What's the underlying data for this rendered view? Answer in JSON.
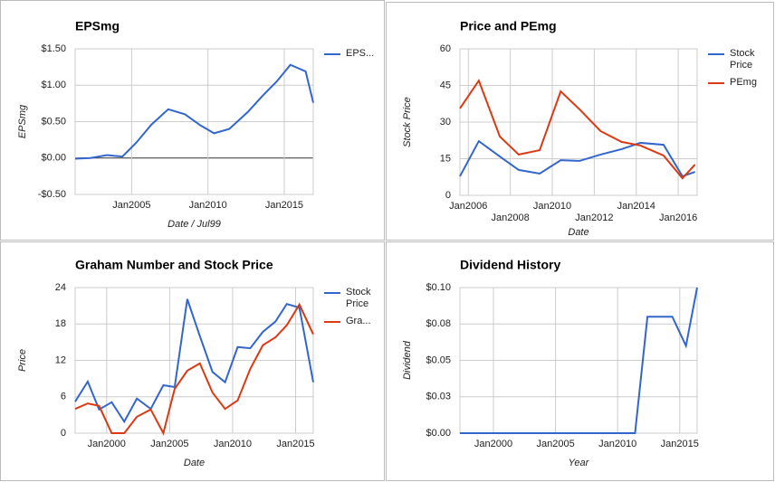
{
  "chart_data": [
    {
      "type": "line",
      "title": "EPSmg",
      "x_label": "Date / Jul99",
      "y_label": "EPSmg",
      "x": [
        2001.3,
        2002.3,
        2003.4,
        2004.4,
        2005.3,
        2006.3,
        2007.4,
        2008.5,
        2009.5,
        2010.4,
        2011.4,
        2012.6,
        2013.6,
        2014.5,
        2015.4,
        2016.4,
        2016.9
      ],
      "series": [
        {
          "name": "EPS...",
          "color": "#3366cc",
          "values": [
            -0.01,
            0,
            0.04,
            0.02,
            0.21,
            0.46,
            0.67,
            0.6,
            0.45,
            0.34,
            0.4,
            0.63,
            0.86,
            1.05,
            1.28,
            1.19,
            0.76
          ]
        }
      ],
      "xlim": [
        2001.3,
        2016.9
      ],
      "xticks": [
        {
          "value": 2005,
          "label": "Jan2005"
        },
        {
          "value": 2010,
          "label": "Jan2010"
        },
        {
          "value": 2015,
          "label": "Jan2015"
        }
      ],
      "ylim": [
        -0.5,
        1.5
      ],
      "yticks": [
        {
          "value": -0.5,
          "label": "-$0.50"
        },
        {
          "value": 0,
          "label": "$0.00"
        },
        {
          "value": 0.5,
          "label": "$0.50"
        },
        {
          "value": 1,
          "label": "$1.00"
        },
        {
          "value": 1.5,
          "label": "$1.50"
        }
      ],
      "grid": true,
      "legend": "right"
    },
    {
      "type": "line",
      "title": "Price and PEmg",
      "x_label": "Date",
      "y_label": "Stock Price",
      "x": [
        2005.6,
        2006.5,
        2007.5,
        2008.4,
        2009.4,
        2010.4,
        2011.3,
        2012.3,
        2013.3,
        2014.2,
        2015.3,
        2016.2,
        2016.8
      ],
      "series": [
        {
          "name": "Stock Price",
          "color": "#3366cc",
          "values": [
            7.8,
            22.2,
            15.9,
            10.4,
            8.9,
            14.4,
            14.1,
            16.7,
            18.9,
            21.5,
            20.7,
            7.8,
            9.6
          ]
        },
        {
          "name": "PEmg",
          "color": "#dc3912",
          "values": [
            35.6,
            47,
            24.1,
            16.7,
            18.5,
            42.6,
            35.2,
            26.3,
            21.9,
            20.4,
            16.3,
            7,
            12.6
          ]
        }
      ],
      "xlim": [
        2005.6,
        2016.9
      ],
      "xticks": [
        {
          "value": 2006,
          "label": "Jan2006"
        },
        {
          "value": 2008,
          "label": "Jan2008"
        },
        {
          "value": 2010,
          "label": "Jan2010"
        },
        {
          "value": 2012,
          "label": "Jan2012"
        },
        {
          "value": 2014,
          "label": "Jan2014"
        },
        {
          "value": 2016,
          "label": "Jan2016"
        }
      ],
      "ylim": [
        0,
        60
      ],
      "yticks": [
        0,
        15,
        30,
        45,
        60
      ],
      "grid": true,
      "legend": "right"
    },
    {
      "type": "line",
      "title": "Graham Number and Stock Price",
      "x_label": "Date",
      "y_label": "Price",
      "x": [
        1997.5,
        1998.5,
        1999.4,
        2000.4,
        2001.4,
        2002.4,
        2003.5,
        2004.5,
        2005.4,
        2006.4,
        2007.4,
        2008.4,
        2009.4,
        2010.4,
        2011.4,
        2012.4,
        2013.4,
        2014.3,
        2015.3,
        2016.4
      ],
      "series": [
        {
          "name": "Stock Price",
          "color": "#3366cc",
          "values": [
            5.2,
            8.5,
            3.9,
            5.1,
            1.9,
            5.7,
            4.0,
            7.9,
            7.6,
            22.1,
            16.0,
            10.1,
            8.4,
            14.2,
            14.0,
            16.7,
            18.4,
            21.3,
            20.7,
            8.4
          ]
        },
        {
          "name": "Gra...",
          "color": "#dc3912",
          "values": [
            4.0,
            4.9,
            4.5,
            0,
            0,
            2.7,
            3.9,
            0,
            7.3,
            10.3,
            11.5,
            6.7,
            4.0,
            5.4,
            10.6,
            14.5,
            15.8,
            17.8,
            21.2,
            16.3
          ]
        }
      ],
      "xlim": [
        1997.5,
        2016.4
      ],
      "xticks": [
        {
          "value": 2000,
          "label": "Jan2000"
        },
        {
          "value": 2005,
          "label": "Jan2005"
        },
        {
          "value": 2010,
          "label": "Jan2010"
        },
        {
          "value": 2015,
          "label": "Jan2015"
        }
      ],
      "ylim": [
        0,
        24
      ],
      "yticks": [
        0,
        6,
        12,
        18,
        24
      ],
      "grid": true,
      "legend": "right"
    },
    {
      "type": "line",
      "title": "Dividend History",
      "x_label": "Year",
      "y_label": "Dividend",
      "x": [
        1997.3,
        1998.4,
        1999.4,
        2000.4,
        2001.4,
        2002.4,
        2003.4,
        2004.4,
        2005.4,
        2006.4,
        2007.4,
        2008.4,
        2009.4,
        2010.4,
        2011.4,
        2012.4,
        2013.4,
        2014.4,
        2015.5,
        2016.4
      ],
      "series": [
        {
          "color": "#3366cc",
          "values": [
            0,
            0,
            0,
            0,
            0,
            0,
            0,
            0,
            0,
            0,
            0,
            0,
            0,
            0,
            0,
            0.08,
            0.08,
            0.08,
            0.06,
            0.1
          ]
        }
      ],
      "xlim": [
        1997.3,
        2016.4
      ],
      "xticks": [
        {
          "value": 2000,
          "label": "Jan2000"
        },
        {
          "value": 2005,
          "label": "Jan2005"
        },
        {
          "value": 2010,
          "label": "Jan2010"
        },
        {
          "value": 2015,
          "label": "Jan2015"
        }
      ],
      "ylim": [
        0,
        0.1
      ],
      "yticks": [
        {
          "value": 0,
          "label": "$0.00"
        },
        {
          "value": 0.025,
          "label": "$0.03"
        },
        {
          "value": 0.05,
          "label": "$0.05"
        },
        {
          "value": 0.075,
          "label": "$0.08"
        },
        {
          "value": 0.1,
          "label": "$0.10"
        }
      ],
      "grid": true
    }
  ]
}
